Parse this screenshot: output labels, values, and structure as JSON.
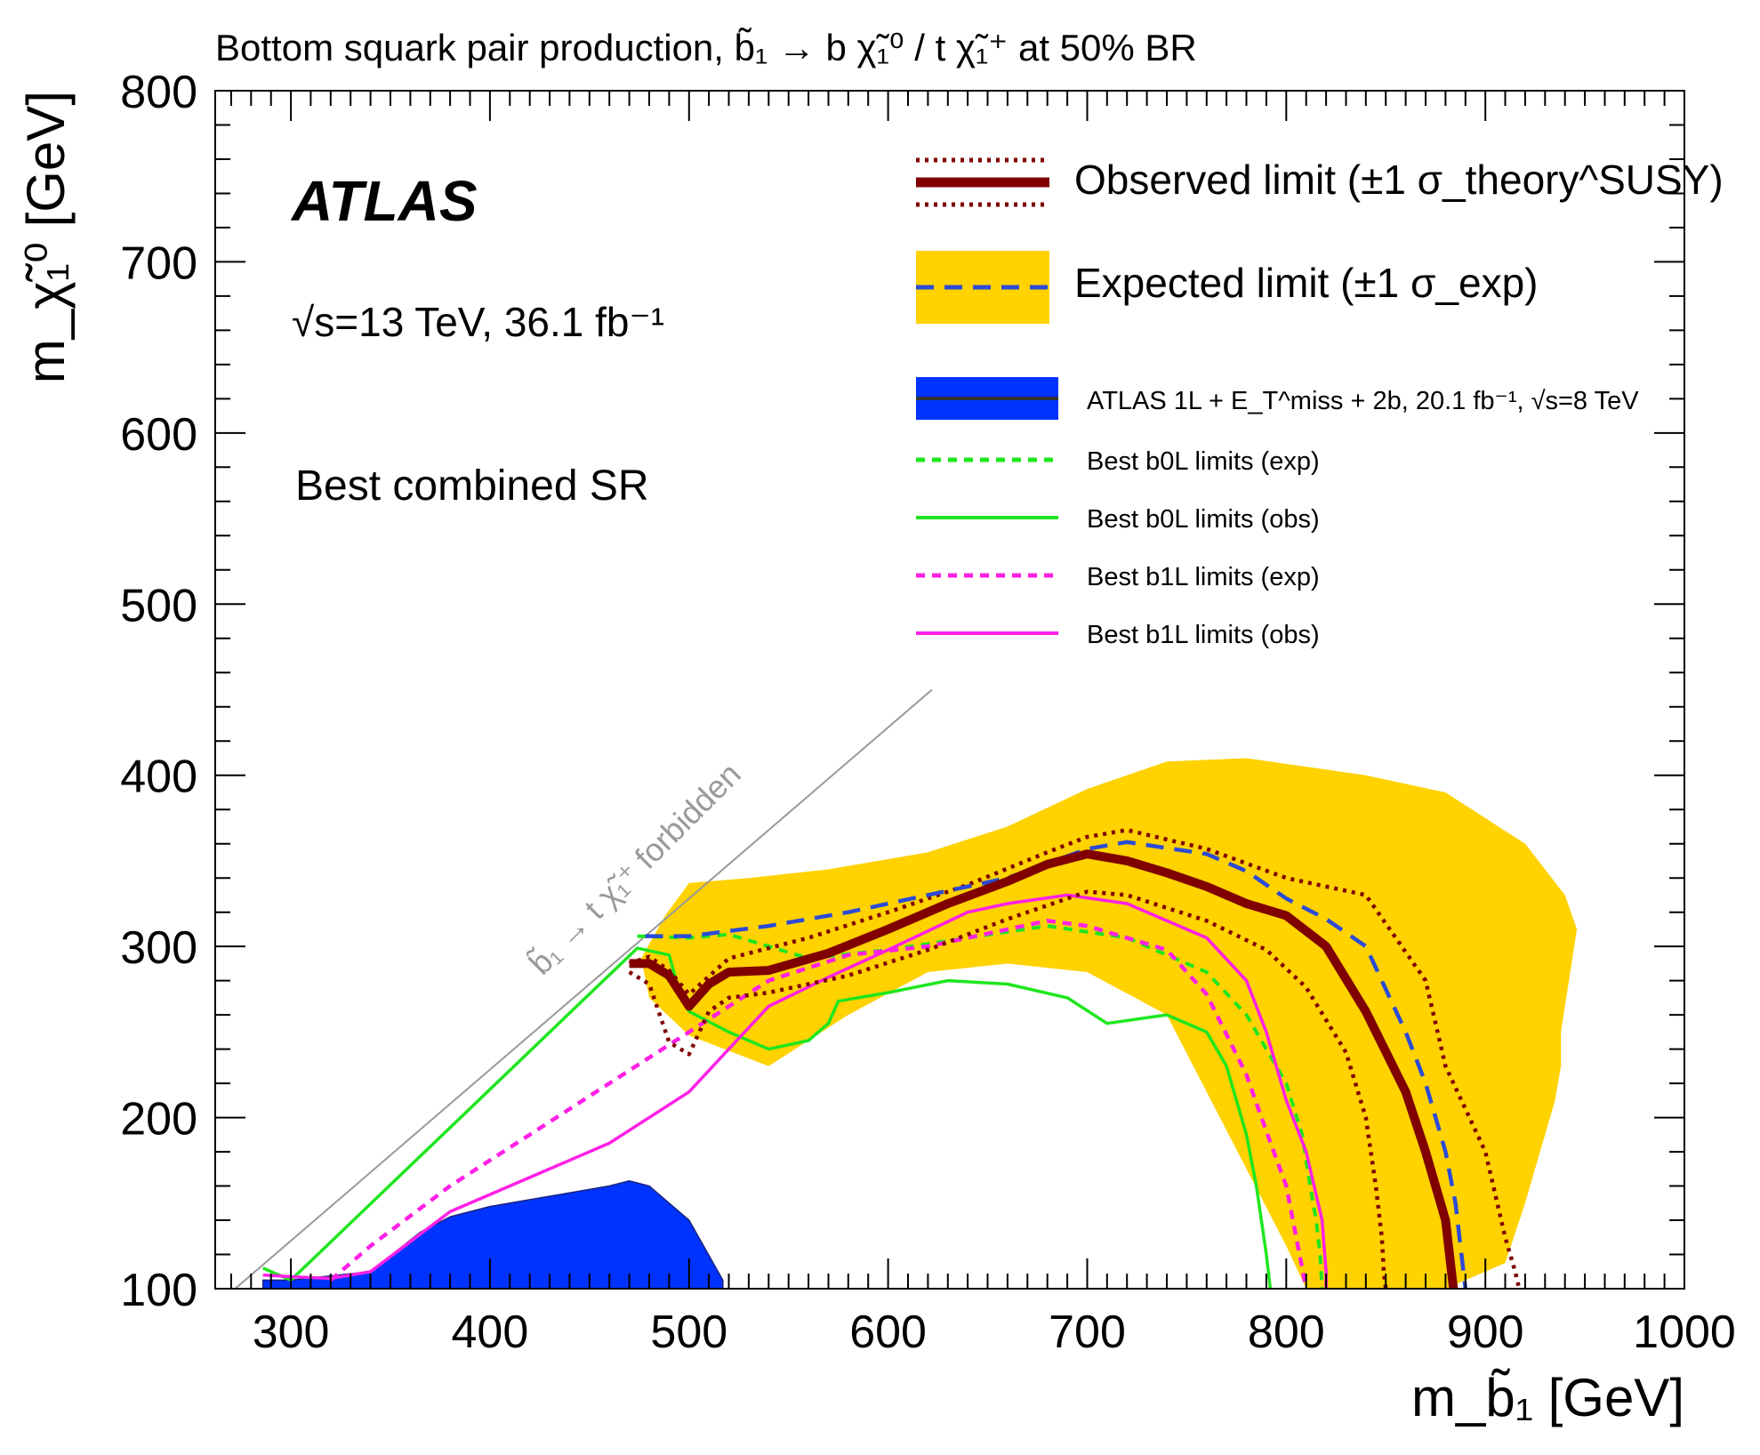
{
  "chart_data": {
    "type": "line",
    "title": "Bottom squark pair production, b̃₁ → b χ̃₁⁰ / t χ̃₁⁺ at 50% BR",
    "xlabel": "m_b̃₁ [GeV]",
    "ylabel": "m_χ̃₁⁰ [GeV]",
    "xlim": [
      262,
      1000
    ],
    "ylim": [
      100,
      800
    ],
    "xticks": [
      300,
      400,
      500,
      600,
      700,
      800,
      900,
      1000
    ],
    "yticks": [
      100,
      200,
      300,
      400,
      500,
      600,
      700,
      800
    ],
    "xtick_labels": [
      "300",
      "400",
      "500",
      "600",
      "700",
      "800",
      "900",
      "1000"
    ],
    "ytick_labels": [
      "100",
      "200",
      "300",
      "400",
      "500",
      "600",
      "700",
      "800"
    ],
    "legend_placement": "top-right",
    "colors": {
      "observed": "#800000",
      "expected": "#2b4bd6",
      "band": "#ffd200",
      "run1_fill": "#0033ff",
      "b0l": "#1ee61e",
      "b1l": "#ff20e6",
      "diagonal": "#999999"
    },
    "annotations": {
      "experiment": "ATLAS",
      "energy_lumi": "√s=13 TeV, 36.1 fb⁻¹",
      "region": "Best combined SR",
      "forbidden": "b̃₁ → t χ̃₁⁺ forbidden"
    },
    "legend": [
      {
        "key": "observed",
        "label": "Observed limit (±1 σ_theory^SUSY)"
      },
      {
        "key": "expected",
        "label": "Expected limit (±1 σ_exp)"
      },
      {
        "key": "run1",
        "label": "ATLAS 1L + E_T^miss + 2b, 20.1 fb⁻¹, √s=8 TeV"
      },
      {
        "key": "b0l_exp",
        "label": "Best b0L limits (exp)"
      },
      {
        "key": "b0l_obs",
        "label": "Best b0L limits (obs)"
      },
      {
        "key": "b1l_exp",
        "label": "Best b1L limits (exp)"
      },
      {
        "key": "b1l_obs",
        "label": "Best b1L limits (obs)"
      }
    ],
    "series": [
      {
        "name": "Expected limit ±1 σ_exp band",
        "key": "band",
        "kind": "band",
        "x": [
          476,
          488,
          500,
          530,
          570,
          620,
          660,
          700,
          740,
          780,
          840,
          880,
          920,
          940,
          946,
          938,
          938,
          935,
          930,
          920,
          910,
          880,
          840,
          810,
          800,
          780,
          760,
          740,
          700,
          660,
          620,
          580,
          540,
          500,
          480,
          476
        ],
        "y": [
          293,
          318,
          337,
          340,
          345,
          355,
          370,
          392,
          408,
          410,
          400,
          390,
          360,
          330,
          310,
          250,
          230,
          210,
          190,
          150,
          115,
          100,
          100,
          100,
          125,
          170,
          215,
          260,
          285,
          290,
          285,
          260,
          230,
          248,
          270,
          293
        ]
      },
      {
        "name": "Run-1 limit",
        "key": "run1",
        "kind": "area",
        "x": [
          286,
          300,
          340,
          365,
          380,
          400,
          420,
          440,
          460,
          470,
          480,
          500,
          517,
          517,
          286
        ],
        "y": [
          105,
          105,
          110,
          133,
          142,
          148,
          152,
          156,
          160,
          163,
          160,
          140,
          105,
          100,
          100
        ]
      },
      {
        "name": "Observed limit",
        "key": "observed",
        "kind": "line",
        "x": [
          470,
          480,
          490,
          500,
          510,
          520,
          540,
          570,
          600,
          630,
          660,
          680,
          700,
          720,
          740,
          760,
          780,
          800,
          820,
          840,
          860,
          870,
          880,
          883,
          884
        ],
        "y": [
          290,
          290,
          283,
          265,
          278,
          285,
          286,
          296,
          310,
          325,
          338,
          348,
          354,
          350,
          343,
          335,
          325,
          318,
          300,
          262,
          215,
          180,
          140,
          110,
          100
        ]
      },
      {
        "name": "Observed +1σ",
        "key": "observed_up",
        "kind": "line",
        "x": [
          470,
          480,
          490,
          500,
          520,
          560,
          600,
          640,
          680,
          700,
          720,
          760,
          800,
          840,
          870,
          880,
          900,
          910,
          915,
          917
        ],
        "y": [
          290,
          294,
          286,
          272,
          293,
          305,
          320,
          336,
          355,
          364,
          368,
          357,
          340,
          330,
          280,
          230,
          180,
          130,
          110,
          100
        ]
      },
      {
        "name": "Observed −1σ",
        "key": "observed_dn",
        "kind": "line",
        "x": [
          470,
          480,
          490,
          500,
          510,
          520,
          540,
          580,
          620,
          660,
          700,
          720,
          760,
          790,
          810,
          830,
          840,
          845,
          848,
          849,
          850
        ],
        "y": [
          285,
          278,
          244,
          237,
          262,
          270,
          273,
          283,
          298,
          316,
          332,
          330,
          315,
          298,
          276,
          238,
          200,
          160,
          130,
          110,
          100
        ]
      },
      {
        "name": "Expected limit",
        "key": "expected",
        "kind": "line",
        "x": [
          478,
          500,
          540,
          580,
          620,
          660,
          700,
          720,
          760,
          780,
          800,
          820,
          840,
          860,
          870,
          880,
          885,
          888,
          890
        ],
        "y": [
          306,
          306,
          312,
          320,
          330,
          340,
          357,
          361,
          354,
          344,
          328,
          316,
          300,
          250,
          220,
          180,
          150,
          120,
          100
        ]
      },
      {
        "name": "Best b0L limits (exp)",
        "key": "b0l_exp",
        "kind": "line",
        "x": [
          474,
          500,
          520,
          540,
          560,
          600,
          640,
          680,
          720,
          760,
          780,
          800,
          808,
          812,
          815,
          817,
          818
        ],
        "y": [
          306,
          305,
          307,
          300,
          293,
          298,
          305,
          312,
          305,
          285,
          260,
          220,
          190,
          160,
          140,
          120,
          100
        ]
      },
      {
        "name": "Best b0L limits (obs)",
        "key": "b0l_obs",
        "kind": "line",
        "x": [
          286,
          300,
          474,
          490,
          496,
          500,
          520,
          540,
          560,
          570,
          575,
          600,
          630,
          660,
          690,
          710,
          740,
          760,
          770,
          780,
          785,
          790,
          792
        ],
        "y": [
          112,
          105,
          299,
          295,
          270,
          262,
          250,
          240,
          245,
          255,
          268,
          273,
          280,
          278,
          270,
          255,
          260,
          250,
          230,
          190,
          160,
          120,
          100
        ]
      },
      {
        "name": "Best b1L limits (exp)",
        "key": "b1l_exp",
        "kind": "line",
        "x": [
          320,
          340,
          380,
          420,
          460,
          500,
          540,
          580,
          620,
          660,
          680,
          700,
          740,
          760,
          780,
          790,
          800,
          805,
          810
        ],
        "y": [
          105,
          125,
          160,
          190,
          220,
          250,
          280,
          295,
          300,
          310,
          315,
          312,
          298,
          272,
          225,
          192,
          160,
          130,
          100
        ]
      },
      {
        "name": "Best b1L limits (obs)",
        "key": "b1l_obs",
        "kind": "line",
        "x": [
          286,
          300,
          320,
          340,
          380,
          420,
          460,
          500,
          520,
          540,
          570,
          600,
          640,
          660,
          690,
          720,
          760,
          780,
          790,
          800,
          810,
          818,
          820,
          820
        ],
        "y": [
          108,
          107,
          106,
          110,
          145,
          165,
          185,
          215,
          240,
          265,
          282,
          298,
          320,
          325,
          330,
          325,
          305,
          280,
          250,
          210,
          180,
          140,
          110,
          100
        ]
      },
      {
        "name": "Diagonal",
        "key": "diagonal",
        "kind": "line",
        "x": [
          272,
          622
        ],
        "y": [
          100,
          450
        ]
      }
    ]
  }
}
